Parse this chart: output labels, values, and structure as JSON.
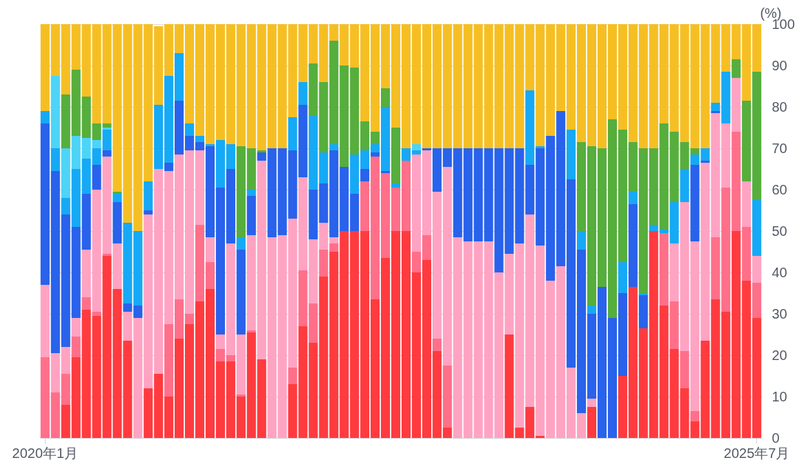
{
  "chart_data": {
    "type": "bar",
    "stacked": true,
    "ylabel": "(%)",
    "categories": [
      "2020年1月",
      null,
      null,
      null,
      null,
      null,
      null,
      null,
      null,
      null,
      null,
      null,
      null,
      null,
      null,
      null,
      null,
      null,
      null,
      null,
      null,
      null,
      null,
      null,
      null,
      null,
      null,
      null,
      null,
      null,
      null,
      null,
      null,
      null,
      null,
      null,
      null,
      null,
      null,
      null,
      null,
      null,
      null,
      null,
      null,
      null,
      null,
      null,
      null,
      null,
      null,
      null,
      null,
      null,
      null,
      null,
      null,
      null,
      null,
      null,
      null,
      null,
      null,
      null,
      null,
      null,
      null,
      null,
      null,
      "2025年7月"
    ],
    "series": [
      {
        "color": "#ff3b3f",
        "values": [
          0,
          0,
          8,
          19.5,
          31,
          29.5,
          44,
          36,
          23.5,
          0,
          12,
          15.5,
          10,
          24,
          27.5,
          33,
          36,
          18.5,
          18.5,
          10,
          25.5,
          19,
          0,
          0,
          13,
          27,
          23,
          39,
          45,
          50,
          50,
          50,
          33.5,
          43.5,
          50,
          50,
          40,
          43,
          21,
          2.5,
          0,
          0,
          0,
          0,
          0,
          25,
          2.5,
          7.5,
          0.5,
          0,
          0,
          0,
          0,
          7.5,
          0,
          0,
          15,
          36.5,
          26.5,
          50,
          32,
          21.5,
          12,
          4,
          23.5,
          33.5,
          30.5,
          50,
          38,
          29
        ]
      },
      {
        "color": "#ff6f8a",
        "values": [
          19.5,
          11,
          7.5,
          5,
          3,
          1,
          0.5,
          0,
          0,
          0,
          0,
          0,
          17.5,
          9.5,
          2.5,
          18.5,
          6.5,
          3,
          1.5,
          0.5,
          0.5,
          0,
          0,
          0,
          4,
          13.5,
          9.5,
          6.5,
          2,
          0,
          0,
          12,
          34.5,
          20.5,
          10.5,
          17,
          5,
          6,
          3,
          15,
          0,
          0,
          0,
          0,
          0,
          0,
          0,
          0,
          0,
          0,
          0,
          0,
          0,
          0,
          0,
          0,
          0,
          0,
          0,
          0,
          17.5,
          11.5,
          9,
          2.5,
          0,
          15,
          30,
          24,
          13,
          8.5
        ]
      },
      {
        "color": "#ffa3c3",
        "values": [
          17.5,
          9.5,
          6.5,
          4.5,
          11.5,
          29.5,
          23.5,
          11,
          7,
          29,
          42,
          49.5,
          37,
          35,
          39.5,
          18,
          6,
          3.5,
          27,
          14.5,
          23,
          48,
          48.5,
          49,
          36,
          22.5,
          15.5,
          6.5,
          1.5,
          0,
          0,
          0,
          0,
          0,
          0,
          0,
          23.5,
          20.5,
          35.5,
          48,
          48.5,
          47.5,
          47.5,
          47.5,
          40,
          19.5,
          44.5,
          46.5,
          46,
          38,
          41.5,
          17,
          6,
          2,
          0,
          0,
          0,
          0,
          0,
          0,
          0,
          14,
          36,
          41,
          43,
          30,
          15.5,
          13,
          11,
          6.5
        ]
      },
      {
        "color": "#2962eb",
        "values": [
          39,
          44,
          32,
          22,
          13.5,
          6,
          1.5,
          10,
          2,
          3,
          1,
          0,
          2,
          13,
          3.5,
          2,
          22,
          35.5,
          18,
          20.5,
          9.5,
          2,
          21.5,
          21,
          16.5,
          17.5,
          12,
          9.5,
          21,
          15.5,
          9,
          3,
          1,
          0.5,
          0,
          0,
          0,
          0.5,
          10.5,
          4.5,
          21.5,
          22.5,
          22.5,
          22.5,
          30,
          25.5,
          23,
          12,
          23.5,
          35,
          37.5,
          45.5,
          39.5,
          20.5,
          36.5,
          29,
          20,
          20,
          8,
          0,
          0,
          0,
          0,
          18.5,
          0.5,
          0.5,
          0,
          0,
          0,
          0
        ]
      },
      {
        "color": "#16a9f5",
        "values": [
          3,
          5.5,
          4,
          14,
          8.5,
          4,
          5,
          2,
          19.5,
          18,
          7,
          15.5,
          21,
          11.5,
          3,
          1.5,
          0.5,
          11.5,
          6,
          3,
          1.5,
          0,
          0,
          0,
          8,
          5.5,
          18,
          7.5,
          1.5,
          0,
          9.5,
          4.5,
          2,
          15.5,
          1,
          3,
          1,
          0,
          0,
          0,
          0,
          0,
          0,
          0,
          0,
          0,
          0,
          18,
          0.5,
          0,
          0,
          12,
          4.5,
          2,
          0,
          0,
          7.5,
          3,
          0.5,
          1.5,
          1,
          10,
          8,
          2.5,
          3,
          2,
          12.5,
          0,
          0,
          13.5
        ]
      },
      {
        "color": "#4dd4f7",
        "values": [
          0,
          17.5,
          12,
          8,
          5,
          2,
          0.5,
          0,
          0,
          0,
          0,
          0,
          0,
          0,
          0,
          0,
          0,
          0,
          0,
          0,
          0,
          0,
          0,
          0,
          0,
          0,
          0,
          0,
          0,
          0,
          0,
          0,
          0,
          0,
          0,
          0,
          1.5,
          0,
          0,
          0,
          0,
          0,
          0,
          0,
          0,
          0,
          0,
          0,
          0,
          0,
          0,
          0,
          0,
          0,
          0,
          0,
          0,
          0,
          0,
          0,
          0,
          0,
          0,
          0,
          0,
          0,
          0,
          0,
          0,
          0
        ]
      },
      {
        "color": "#56ae3c",
        "values": [
          0,
          0,
          13,
          16,
          10,
          4,
          1,
          0.5,
          0,
          0,
          0,
          0,
          0,
          0,
          0,
          0,
          0,
          0,
          0,
          22,
          10,
          0.5,
          0,
          0,
          0,
          0,
          12.5,
          17,
          25,
          24.5,
          21,
          7,
          3,
          4.5,
          13.5,
          0,
          0,
          0,
          0,
          0,
          0,
          0,
          0,
          0,
          0,
          0,
          0,
          0,
          0,
          0,
          0,
          0,
          21.5,
          38.5,
          33.5,
          48,
          32,
          12,
          35,
          18.5,
          25.5,
          17,
          6.5,
          1.5,
          0,
          0,
          0,
          4.5,
          19.5,
          31
        ]
      },
      {
        "color": "#f5bf24",
        "values": [
          21,
          12.5,
          17,
          11,
          17.5,
          24,
          24,
          40.5,
          48,
          50,
          38,
          19,
          12.5,
          7,
          24,
          27,
          29,
          28,
          29,
          29.5,
          30,
          30.5,
          30,
          30,
          22.5,
          14,
          9.5,
          14,
          4,
          10,
          10.5,
          23.5,
          26,
          15.5,
          25,
          30,
          29,
          30,
          30,
          30,
          30,
          30,
          30,
          30,
          30,
          30,
          30,
          16,
          29.5,
          27,
          21,
          25.5,
          28.5,
          29.5,
          30,
          23,
          25.5,
          28.5,
          30,
          30,
          24,
          26,
          28.5,
          30,
          30,
          19,
          11.5,
          8.5,
          18.5,
          11.5
        ]
      }
    ],
    "ylim": [
      0,
      100
    ],
    "yticks": [
      0,
      10,
      20,
      30,
      40,
      50,
      60,
      70,
      80,
      90,
      100
    ],
    "grid": "y",
    "legend": false
  }
}
